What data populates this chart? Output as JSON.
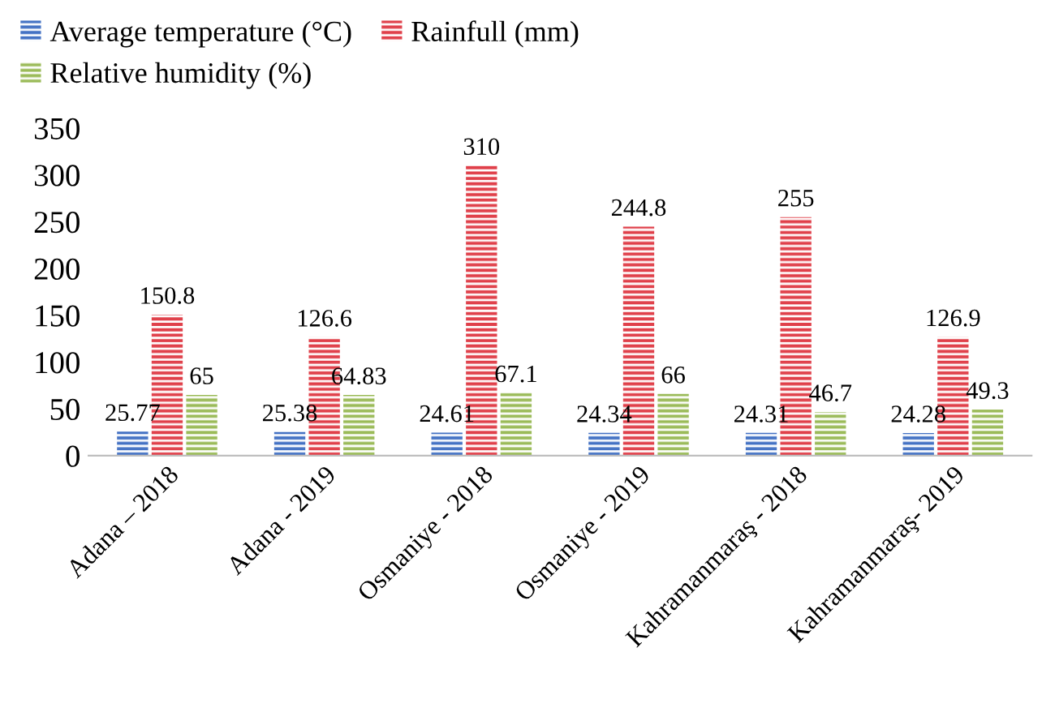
{
  "chart_data": {
    "type": "bar",
    "categories": [
      "Adana – 2018",
      "Adana - 2019",
      "Osmaniye - 2018",
      "Osmaniye - 2019",
      "Kahramanmaraş - 2018",
      "Kahramanmaraş- 2019"
    ],
    "series": [
      {
        "name": "Average temperature (°C)",
        "color": "#4472c4",
        "values": [
          25.77,
          25.38,
          24.61,
          24.34,
          24.31,
          24.28
        ]
      },
      {
        "name": "Rainfull (mm)",
        "color": "#e0404a",
        "values": [
          150.8,
          126.6,
          310,
          244.8,
          255,
          126.9
        ]
      },
      {
        "name": "Relative humidity (%)",
        "color": "#9bbb59",
        "values": [
          65,
          64.83,
          67.1,
          66,
          46.7,
          49.3
        ]
      }
    ],
    "ylim": [
      0,
      350
    ],
    "yticks": [
      0,
      50,
      100,
      150,
      200,
      250,
      300,
      350
    ],
    "data_labels": true,
    "grid": false,
    "legend": "top left"
  }
}
